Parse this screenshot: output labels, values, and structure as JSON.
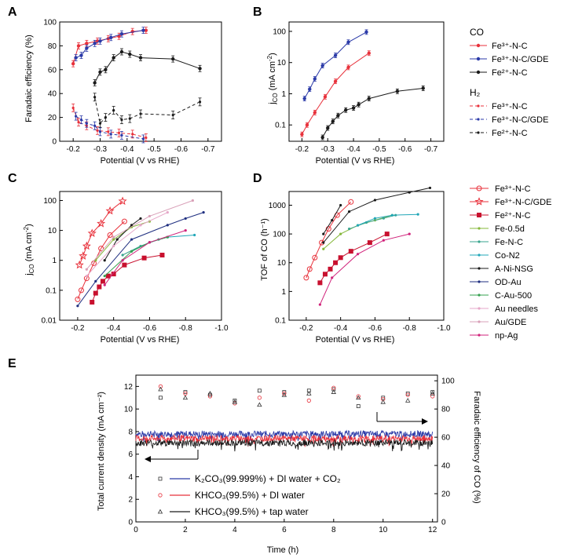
{
  "colors": {
    "red": "#e8313b",
    "blue": "#2b3aa8",
    "black": "#1a1a1a",
    "darkred": "#c8102e",
    "green": "#35a04f",
    "teal": "#3aa58f",
    "cyan": "#22a7b8",
    "olive": "#86b83a",
    "pink": "#e6a7c8",
    "lightpink": "#d9a0b8",
    "magenta": "#d1237b",
    "navy": "#1f2f80"
  },
  "chart_data": [
    {
      "panel": "A",
      "type": "line",
      "xlabel": "Potential (V vs RHE)",
      "ylabel": "Faradaic efficiency (%)",
      "xlim": [
        -0.15,
        -0.75
      ],
      "ylim": [
        0,
        100
      ],
      "xticks": [
        "-0.2",
        "-0.3",
        "-0.4",
        "-0.5",
        "-0.6",
        "-0.7"
      ],
      "yticks": [
        "0",
        "20",
        "40",
        "60",
        "80",
        "100"
      ],
      "series": [
        {
          "name": "CO Fe3+-N-C",
          "color": "red",
          "dash": false,
          "x": [
            -0.2,
            -0.22,
            -0.25,
            -0.29,
            -0.33,
            -0.37,
            -0.42,
            -0.47
          ],
          "y": [
            65,
            80,
            82,
            84,
            86,
            88,
            92,
            93
          ]
        },
        {
          "name": "CO Fe3+-N-C/GDE",
          "color": "blue",
          "dash": false,
          "x": [
            -0.21,
            -0.23,
            -0.25,
            -0.28,
            -0.3,
            -0.34,
            -0.38,
            -0.46
          ],
          "y": [
            70,
            72,
            78,
            82,
            84,
            87,
            90,
            93
          ]
        },
        {
          "name": "CO Fe2+-N-C",
          "color": "black",
          "dash": false,
          "x": [
            -0.28,
            -0.3,
            -0.32,
            -0.35,
            -0.38,
            -0.41,
            -0.45,
            -0.57,
            -0.67
          ],
          "y": [
            49,
            58,
            60,
            70,
            75,
            73,
            70,
            69,
            61
          ]
        },
        {
          "name": "H2 Fe3+-N-C",
          "color": "red",
          "dash": true,
          "x": [
            -0.2,
            -0.22,
            -0.25,
            -0.29,
            -0.33,
            -0.37,
            -0.42,
            -0.47
          ],
          "y": [
            28,
            16,
            13,
            9,
            8,
            7,
            6,
            3
          ]
        },
        {
          "name": "H2 Fe3+-N-C/GDE",
          "color": "blue",
          "dash": true,
          "x": [
            -0.21,
            -0.23,
            -0.25,
            -0.28,
            -0.3,
            -0.34,
            -0.38,
            -0.46
          ],
          "y": [
            21,
            18,
            15,
            13,
            8,
            6,
            5,
            2
          ]
        },
        {
          "name": "H2 Fe2+-N-C",
          "color": "black",
          "dash": true,
          "x": [
            -0.28,
            -0.3,
            -0.32,
            -0.35,
            -0.38,
            -0.41,
            -0.45,
            -0.57,
            -0.67
          ],
          "y": [
            37,
            15,
            20,
            26,
            18,
            19,
            23,
            22,
            33
          ]
        }
      ]
    },
    {
      "panel": "B",
      "type": "line",
      "xlabel": "Potential (V vs RHE)",
      "ylabel": "jCO (mA cm-2)",
      "yscale": "log",
      "xlim": [
        -0.15,
        -0.75
      ],
      "ylim": [
        0.03,
        200
      ],
      "xticks": [
        "-0.2",
        "-0.3",
        "-0.4",
        "-0.5",
        "-0.6",
        "-0.7"
      ],
      "yticks": [
        "0.1",
        "1",
        "10",
        "100"
      ],
      "series": [
        {
          "name": "Fe3+-N-C",
          "color": "red",
          "x": [
            -0.2,
            -0.22,
            -0.25,
            -0.29,
            -0.33,
            -0.38,
            -0.46
          ],
          "y": [
            0.05,
            0.1,
            0.25,
            0.8,
            2.5,
            7,
            20
          ]
        },
        {
          "name": "Fe3+-N-C/GDE",
          "color": "blue",
          "x": [
            -0.21,
            -0.23,
            -0.25,
            -0.28,
            -0.33,
            -0.38,
            -0.45
          ],
          "y": [
            0.7,
            1.4,
            3,
            8,
            17,
            45,
            95
          ]
        },
        {
          "name": "Fe2+-N-C",
          "color": "black",
          "x": [
            -0.28,
            -0.3,
            -0.32,
            -0.34,
            -0.37,
            -0.4,
            -0.42,
            -0.46,
            -0.57,
            -0.67
          ],
          "y": [
            0.04,
            0.08,
            0.13,
            0.2,
            0.3,
            0.35,
            0.45,
            0.7,
            1.2,
            1.5
          ]
        }
      ]
    },
    {
      "panel": "C",
      "type": "line",
      "xlabel": "Potential (V vs RHE)",
      "ylabel": "jCO (mA cm-2)",
      "yscale": "log",
      "xlim": [
        -0.1,
        -1.0
      ],
      "ylim": [
        0.01,
        200
      ],
      "xticks": [
        "-0.2",
        "-0.4",
        "-0.6",
        "-0.8",
        "-1.0"
      ],
      "yticks": [
        "0.01",
        "0.1",
        "1",
        "10",
        "100"
      ],
      "series": [
        {
          "name": "Fe3+-N-C",
          "color": "red",
          "x": [
            -0.2,
            -0.22,
            -0.25,
            -0.29,
            -0.33,
            -0.38,
            -0.46
          ],
          "y": [
            0.05,
            0.1,
            0.25,
            0.8,
            2.5,
            7,
            20
          ]
        },
        {
          "name": "Fe3+-N-C/GDE",
          "color": "red",
          "x": [
            -0.21,
            -0.23,
            -0.25,
            -0.28,
            -0.33,
            -0.38,
            -0.45
          ],
          "y": [
            0.7,
            1.4,
            3,
            8,
            17,
            45,
            95
          ]
        },
        {
          "name": "Fe2+-N-C",
          "color": "darkred",
          "x": [
            -0.28,
            -0.3,
            -0.32,
            -0.34,
            -0.37,
            -0.4,
            -0.46,
            -0.57,
            -0.67
          ],
          "y": [
            0.04,
            0.08,
            0.13,
            0.2,
            0.3,
            0.35,
            0.7,
            1.2,
            1.5
          ]
        },
        {
          "name": "Fe-0.5d",
          "color": "olive",
          "x": [
            -0.3,
            -0.4,
            -0.5,
            -0.6
          ],
          "y": [
            1,
            5,
            13,
            20
          ]
        },
        {
          "name": "Fe-N-C",
          "color": "teal",
          "x": [
            -0.45,
            -0.55,
            -0.65,
            -0.7
          ],
          "y": [
            1.5,
            3,
            5,
            6
          ]
        },
        {
          "name": "Co-N2",
          "color": "cyan",
          "x": [
            -0.5,
            -0.6,
            -0.7,
            -0.85
          ],
          "y": [
            2,
            4,
            6,
            7
          ]
        },
        {
          "name": "A-Ni-NSG",
          "color": "black",
          "x": [
            -0.35,
            -0.42,
            -0.5,
            -0.55
          ],
          "y": [
            1,
            5,
            15,
            25
          ]
        },
        {
          "name": "OD-Au",
          "color": "navy",
          "x": [
            -0.2,
            -0.3,
            -0.5,
            -0.7,
            -0.8,
            -0.9
          ],
          "y": [
            0.03,
            0.2,
            5,
            15,
            25,
            40
          ]
        },
        {
          "name": "C-Au-500",
          "color": "green",
          "x": [
            -0.35,
            -0.5,
            -0.6,
            -0.7
          ],
          "y": [
            0.3,
            2,
            4,
            6
          ]
        },
        {
          "name": "Au needles",
          "color": "pink",
          "x": [
            -0.25,
            -0.4,
            -0.55,
            -0.7
          ],
          "y": [
            0.3,
            3,
            15,
            40
          ]
        },
        {
          "name": "Au/GDE",
          "color": "lightpink",
          "x": [
            -0.25,
            -0.4,
            -0.6,
            -0.84
          ],
          "y": [
            0.5,
            6,
            30,
            100
          ]
        },
        {
          "name": "np-Ag",
          "color": "magenta",
          "x": [
            -0.35,
            -0.45,
            -0.6,
            -0.8
          ],
          "y": [
            0.15,
            1,
            4,
            10
          ]
        }
      ]
    },
    {
      "panel": "D",
      "type": "line",
      "xlabel": "Potential (V vs RHE)",
      "ylabel": "TOF of CO (h-1)",
      "yscale": "log",
      "xlim": [
        -0.1,
        -1.0
      ],
      "ylim": [
        0.1,
        3000
      ],
      "xticks": [
        "-0.2",
        "-0.4",
        "-0.6",
        "-0.8",
        "-1.0"
      ],
      "yticks": [
        "0.1",
        "1",
        "10",
        "100",
        "1000"
      ],
      "series": [
        {
          "name": "Fe3+-N-C",
          "color": "red",
          "x": [
            -0.2,
            -0.22,
            -0.25,
            -0.29,
            -0.33,
            -0.38,
            -0.46
          ],
          "y": [
            3,
            6,
            15,
            50,
            150,
            450,
            1300
          ]
        },
        {
          "name": "Fe2+-N-C",
          "color": "darkred",
          "x": [
            -0.28,
            -0.31,
            -0.34,
            -0.37,
            -0.4,
            -0.46,
            -0.57,
            -0.67
          ],
          "y": [
            2,
            4,
            6,
            10,
            15,
            25,
            50,
            100
          ]
        },
        {
          "name": "Fe-0.5d",
          "color": "olive",
          "x": [
            -0.3,
            -0.4,
            -0.5,
            -0.6,
            -0.7
          ],
          "y": [
            30,
            100,
            200,
            300,
            450
          ]
        },
        {
          "name": "Fe-N-C",
          "color": "teal",
          "x": [
            -0.45,
            -0.55,
            -0.65,
            -0.72
          ],
          "y": [
            150,
            250,
            350,
            450
          ]
        },
        {
          "name": "Co-N2",
          "color": "cyan",
          "x": [
            -0.5,
            -0.6,
            -0.7,
            -0.85
          ],
          "y": [
            200,
            350,
            450,
            480
          ]
        },
        {
          "name": "A-Ni-NSG",
          "color": "black",
          "x": [
            -0.3,
            -0.35,
            -0.4
          ],
          "y": [
            100,
            300,
            1000
          ]
        },
        {
          "name": "OD-Au",
          "color": "black",
          "x": [
            -0.3,
            -0.45,
            -0.6,
            -0.8,
            -0.92
          ],
          "y": [
            50,
            600,
            1500,
            2800,
            4000
          ]
        },
        {
          "name": "np-Ag",
          "color": "magenta",
          "x": [
            -0.28,
            -0.35,
            -0.5,
            -0.65,
            -0.8
          ],
          "y": [
            0.35,
            3,
            20,
            60,
            100
          ]
        }
      ]
    },
    {
      "panel": "E",
      "type": "line",
      "xlabel": "Time (h)",
      "ylabel": "Total current density (mA cm-2)",
      "y2label": "Faradaic efficiency of CO (%)",
      "xlim": [
        0,
        12.2
      ],
      "ylim": [
        0,
        13
      ],
      "y2lim": [
        0,
        104
      ],
      "xticks": [
        "0",
        "2",
        "4",
        "6",
        "8",
        "10",
        "12"
      ],
      "yticks": [
        "0",
        "2",
        "4",
        "6",
        "8",
        "10",
        "12"
      ],
      "y2ticks": [
        "0",
        "20",
        "40",
        "60",
        "80",
        "100"
      ],
      "series": [
        {
          "name": "K2CO3(99.999%) + DI water + CO2",
          "color": "blue",
          "current": 7.8,
          "fe_x": [
            1,
            2,
            3,
            4,
            5,
            6,
            7,
            8,
            9,
            10,
            11,
            12
          ],
          "fe_y": [
            88,
            92,
            90,
            86,
            93,
            92,
            93,
            94,
            82,
            88,
            91,
            92
          ]
        },
        {
          "name": "KHCO3(99.5%) + DI water",
          "color": "red",
          "current": 7.4,
          "fe_x": [
            1,
            2,
            3,
            4,
            5,
            6,
            7,
            8,
            9,
            10,
            11,
            12
          ],
          "fe_y": [
            96,
            91,
            89,
            84,
            88,
            91,
            86,
            95,
            89,
            87,
            90,
            89
          ]
        },
        {
          "name": "KHCO3(99.5%) + tap water",
          "color": "black",
          "current": 7.0,
          "fe_x": [
            1,
            2,
            3,
            4,
            5,
            6,
            7,
            8,
            9,
            10,
            11,
            12
          ],
          "fe_y": [
            94,
            88,
            91,
            85,
            83,
            90,
            91,
            92,
            88,
            85,
            86,
            91
          ]
        }
      ]
    }
  ],
  "panels": {
    "A": {
      "letter": "A",
      "xlabel": "Potential (V vs RHE)",
      "ylabel": "Faradaic efficiency (%)"
    },
    "B": {
      "letter": "B",
      "xlabel": "Potential (V vs RHE)"
    },
    "C": {
      "letter": "C",
      "xlabel": "Potential (V vs RHE)"
    },
    "D": {
      "letter": "D",
      "xlabel": "Potential (V vs RHE)",
      "ylabel": "TOF of CO (h⁻¹)"
    },
    "E": {
      "letter": "E",
      "xlabel": "Time (h)",
      "ylabel": "Total current density (mA cm⁻²)",
      "y2label": "Faradaic efficiency of CO (%)"
    }
  },
  "legend_ab": {
    "co_heading": "CO",
    "h2_heading": "H₂",
    "items": [
      "Fe³⁺-N-C",
      "Fe³⁺-N-C/GDE",
      "Fe²⁺-N-C"
    ]
  },
  "legend_cd": {
    "items": [
      "Fe³⁺-N-C",
      "Fe³⁺-N-C/GDE",
      "Fe²⁺-N-C",
      "Fe-0.5d",
      "Fe-N-C",
      "Co-N2",
      "A-Ni-NSG",
      "OD-Au",
      "C-Au-500",
      "Au needles",
      "Au/GDE",
      "np-Ag"
    ]
  },
  "legend_e": {
    "items": [
      "K₂CO₃(99.999%) + DI water + CO₂",
      "KHCO₃(99.5%) + DI water",
      "KHCO₃(99.5%) + tap water"
    ]
  }
}
